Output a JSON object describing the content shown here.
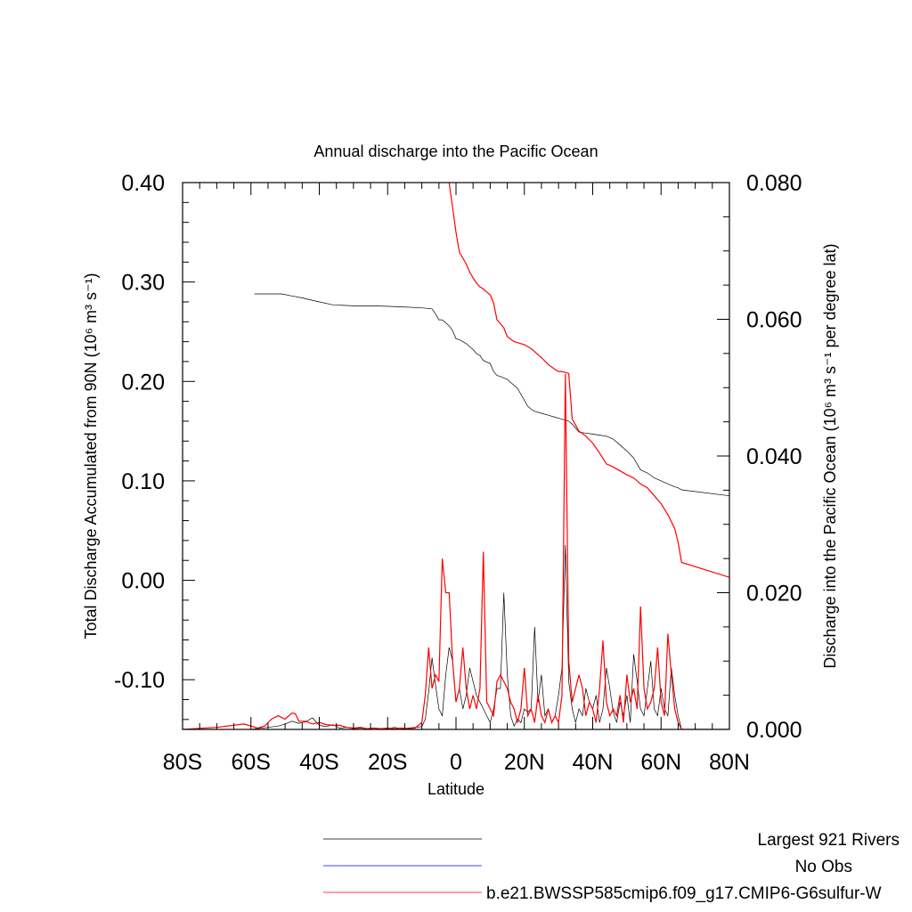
{
  "chart_data": {
    "type": "line",
    "title": "Annual discharge into the Pacific Ocean",
    "xlabel": "Latitude",
    "ylabel_left": "Total Discharge Accumulated from 90N (10⁶ m³ s⁻¹)",
    "ylabel_right": "Discharge into the Pacific Ocean (10⁶ m³ s⁻¹ per degree lat)",
    "xlim": [
      -80,
      80
    ],
    "ylim_left": [
      -0.15,
      0.4
    ],
    "ylim_right": [
      0.0,
      0.08
    ],
    "x_ticks": [
      -80,
      -60,
      -40,
      -20,
      0,
      20,
      40,
      60,
      80
    ],
    "x_tick_labels": [
      "80S",
      "60S",
      "40S",
      "20S",
      "0",
      "20N",
      "40N",
      "60N",
      "80N"
    ],
    "y_left_ticks": [
      0.4,
      0.3,
      0.2,
      0.1,
      0.0,
      -0.1
    ],
    "y_left_tick_labels": [
      "0.40",
      "0.30",
      "0.20",
      "0.10",
      "0.00",
      "-0.10"
    ],
    "y_right_ticks": [
      0.08,
      0.06,
      0.04,
      0.02,
      0.0
    ],
    "y_right_tick_labels": [
      "0.080",
      "0.060",
      "0.040",
      "0.020",
      "0.000"
    ],
    "series": [
      {
        "name": "Largest 921 Rivers",
        "color": "#000000",
        "kind": "accumulated",
        "axis": "left",
        "x": [
          -59,
          -51,
          -48,
          -45,
          -40,
          -36,
          -30,
          -24,
          -16,
          -10,
          -7,
          -6,
          -5,
          -4,
          -2,
          -1,
          0,
          1,
          2,
          3,
          5,
          6,
          7,
          8,
          10,
          11,
          12,
          13,
          15,
          18,
          21,
          22,
          23,
          25,
          27,
          29,
          30,
          31,
          32,
          33,
          34,
          36,
          38,
          40,
          42,
          44,
          46,
          48,
          50,
          52,
          54,
          56,
          58,
          60,
          62,
          64,
          65,
          66,
          80
        ],
        "y": [
          0.288,
          0.288,
          0.286,
          0.284,
          0.28,
          0.277,
          0.276,
          0.276,
          0.275,
          0.274,
          0.273,
          0.268,
          0.262,
          0.262,
          0.256,
          0.251,
          0.243,
          0.242,
          0.24,
          0.238,
          0.232,
          0.228,
          0.226,
          0.221,
          0.218,
          0.21,
          0.206,
          0.205,
          0.202,
          0.193,
          0.175,
          0.172,
          0.17,
          0.168,
          0.166,
          0.164,
          0.163,
          0.162,
          0.161,
          0.16,
          0.157,
          0.149,
          0.148,
          0.147,
          0.146,
          0.145,
          0.142,
          0.136,
          0.13,
          0.123,
          0.111,
          0.108,
          0.103,
          0.1,
          0.097,
          0.094,
          0.093,
          0.091,
          0.085
        ]
      },
      {
        "name": "b.e21.BWSSP585cmip6.f09_g17.CMIP6-G6sulfur-W",
        "color": "#ff0000",
        "kind": "accumulated",
        "axis": "left",
        "x": [
          -2,
          -1,
          0,
          1,
          2,
          3,
          4,
          5,
          6,
          7,
          8,
          9,
          10,
          11,
          12,
          14,
          15,
          17,
          18,
          20,
          22,
          23,
          25,
          27,
          29,
          30,
          31,
          32,
          33,
          34,
          36,
          38,
          40,
          42,
          44,
          46,
          48,
          50,
          52,
          54,
          56,
          58,
          60,
          62,
          64,
          65,
          66,
          80
        ],
        "y": [
          0.4,
          0.375,
          0.35,
          0.33,
          0.324,
          0.318,
          0.31,
          0.304,
          0.299,
          0.295,
          0.293,
          0.29,
          0.287,
          0.279,
          0.262,
          0.254,
          0.245,
          0.24,
          0.239,
          0.237,
          0.233,
          0.23,
          0.224,
          0.217,
          0.212,
          0.21,
          0.21,
          0.209,
          0.208,
          0.162,
          0.15,
          0.145,
          0.138,
          0.128,
          0.117,
          0.114,
          0.11,
          0.106,
          0.103,
          0.097,
          0.093,
          0.085,
          0.077,
          0.066,
          0.052,
          0.038,
          0.018,
          0.003
        ]
      },
      {
        "name": "Largest 921 Rivers",
        "color": "#000000",
        "kind": "per-degree",
        "axis": "right",
        "x": [
          -80,
          -70,
          -60,
          -55,
          -52,
          -50,
          -48,
          -46,
          -44,
          -42,
          -40,
          -38,
          -36,
          -34,
          -32,
          -30,
          -28,
          -26,
          -24,
          -22,
          -20,
          -18,
          -16,
          -14,
          -12,
          -10,
          -9,
          -8,
          -7,
          -6,
          -5,
          -4,
          -3,
          -2,
          -1,
          0,
          1,
          2,
          3,
          4,
          5,
          6,
          7,
          8,
          9,
          10,
          11,
          12,
          13,
          14,
          15,
          16,
          17,
          18,
          19,
          20,
          21,
          22,
          23,
          24,
          25,
          26,
          27,
          28,
          29,
          30,
          31,
          32,
          33,
          34,
          35,
          36,
          37,
          38,
          39,
          40,
          41,
          42,
          43,
          44,
          45,
          46,
          47,
          48,
          49,
          50,
          51,
          52,
          53,
          54,
          55,
          56,
          57,
          58,
          59,
          60,
          61,
          62,
          63,
          64,
          65,
          66,
          70,
          80
        ],
        "y": [
          0.0,
          0.0,
          0.0,
          0.0003,
          0.0005,
          0.0008,
          0.0012,
          0.0009,
          0.0011,
          0.0017,
          0.0006,
          0.0004,
          0.0007,
          0.0002,
          0.0003,
          0.0001,
          0.0002,
          0.0001,
          0.0002,
          0.0001,
          0.0001,
          0.0003,
          0.0001,
          0.0002,
          0.0003,
          0.0004,
          0.0015,
          0.0055,
          0.0105,
          0.0065,
          0.003,
          0.002,
          0.008,
          0.012,
          0.01,
          0.004,
          0.006,
          0.003,
          0.005,
          0.009,
          0.007,
          0.005,
          0.004,
          0.003,
          0.002,
          0.001,
          0.003,
          0.006,
          0.006,
          0.02,
          0.008,
          0.002,
          0.0005,
          0.0015,
          0.001,
          0.003,
          0.0025,
          0.003,
          0.015,
          0.004,
          0.008,
          0.002,
          0.003,
          0.001,
          0.002,
          0.005,
          0.009,
          0.027,
          0.007,
          0.003,
          0.001,
          0.003,
          0.002,
          0.006,
          0.004,
          0.003,
          0.005,
          0.001,
          0.003,
          0.009,
          0.006,
          0.0025,
          0.001,
          0.004,
          0.002,
          0.005,
          0.001,
          0.011,
          0.007,
          0.003,
          0.002,
          0.006,
          0.01,
          0.003,
          0.002,
          0.006,
          0.003,
          0.002,
          0.009,
          0.005,
          0.002,
          0.0,
          0.0,
          0.0
        ]
      },
      {
        "name": "b.e21.BWSSP585cmip6.f09_g17.CMIP6-G6sulfur-W",
        "color": "#ff0000",
        "kind": "per-degree",
        "axis": "right",
        "x": [
          -80,
          -70,
          -62,
          -58,
          -56,
          -54,
          -52,
          -50,
          -48,
          -47,
          -46,
          -44,
          -42,
          -40,
          -38,
          -36,
          -34,
          -32,
          -30,
          -28,
          -26,
          -24,
          -22,
          -20,
          -18,
          -16,
          -14,
          -12,
          -10,
          -9,
          -8,
          -7,
          -6,
          -5,
          -4,
          -3,
          -2,
          -1,
          0,
          1,
          2,
          3,
          4,
          5,
          6,
          7,
          8,
          9,
          10,
          11,
          12,
          13,
          14,
          15,
          16,
          17,
          18,
          19,
          20,
          21,
          22,
          23,
          24,
          25,
          26,
          27,
          28,
          29,
          30,
          31,
          32,
          33,
          34,
          35,
          36,
          37,
          38,
          39,
          40,
          41,
          42,
          43,
          44,
          45,
          46,
          47,
          48,
          49,
          50,
          51,
          52,
          53,
          54,
          55,
          56,
          57,
          58,
          59,
          60,
          61,
          62,
          63,
          64,
          65,
          66,
          70,
          80
        ],
        "y": [
          0.0,
          0.0003,
          0.0008,
          0.0002,
          0.0005,
          0.0015,
          0.002,
          0.0015,
          0.0024,
          0.0023,
          0.0012,
          0.0012,
          0.0008,
          0.001,
          0.0007,
          0.0006,
          0.0006,
          0.0003,
          0.0002,
          0.0003,
          0.0001,
          0.0002,
          0.0001,
          0.0002,
          0.0001,
          0.0002,
          0.0001,
          0.0002,
          0.001,
          0.005,
          0.012,
          0.006,
          0.008,
          0.007,
          0.025,
          0.02,
          0.02,
          0.01,
          0.004,
          0.006,
          0.012,
          0.006,
          0.003,
          0.005,
          0.003,
          0.006,
          0.026,
          0.004,
          0.003,
          0.002,
          0.007,
          0.008,
          0.007,
          0.006,
          0.004,
          0.003,
          0.001,
          0.003,
          0.009,
          0.002,
          0.003,
          0.001,
          0.005,
          0.002,
          0.001,
          0.003,
          0.001,
          0.002,
          0.001,
          0.005,
          0.052,
          0.01,
          0.004,
          0.006,
          0.008,
          0.006,
          0.002,
          0.004,
          0.003,
          0.001,
          0.006,
          0.013,
          0.004,
          0.002,
          0.003,
          0.002,
          0.005,
          0.001,
          0.008,
          0.004,
          0.006,
          0.003,
          0.018,
          0.006,
          0.003,
          0.004,
          0.006,
          0.012,
          0.004,
          0.002,
          0.014,
          0.008,
          0.003,
          0.001,
          0.0,
          0.0,
          0.0
        ]
      }
    ],
    "legend": {
      "placement": "bottom",
      "entries": [
        {
          "name": "Largest 921 Rivers",
          "color": "#000000"
        },
        {
          "name": "No Obs",
          "color": "#0000ff"
        },
        {
          "name": "b.e21.BWSSP585cmip6.f09_g17.CMIP6-G6sulfur-W",
          "color": "#ff0000"
        }
      ]
    }
  }
}
